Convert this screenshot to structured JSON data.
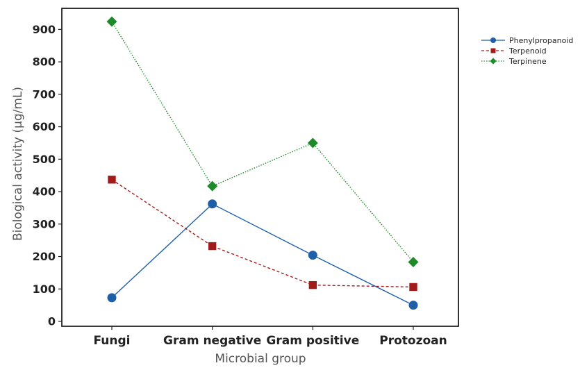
{
  "chart_data": {
    "type": "line",
    "title": "",
    "xlabel": "Microbial group",
    "ylabel": "Biological activity (µg/mL)",
    "categories": [
      "Fungi",
      "Gram negative",
      "Gram positive",
      "Protozoan"
    ],
    "ylim": [
      -15,
      965
    ],
    "yticks": [
      0,
      100,
      200,
      300,
      400,
      500,
      600,
      700,
      800,
      900
    ],
    "grid": false,
    "legend_position": "top-right",
    "series": [
      {
        "name": "Phenylpropanoid",
        "values": [
          73,
          362,
          204,
          50
        ],
        "color": "#1f5fa8",
        "marker": "circle",
        "line_style": "solid"
      },
      {
        "name": "Terpenoid",
        "values": [
          437,
          232,
          112,
          106
        ],
        "color": "#a31a1a",
        "marker": "square",
        "line_style": "dashed"
      },
      {
        "name": "Terpinene",
        "values": [
          924,
          417,
          550,
          183
        ],
        "color": "#1e8a2a",
        "marker": "diamond",
        "line_style": "dotted"
      }
    ]
  }
}
